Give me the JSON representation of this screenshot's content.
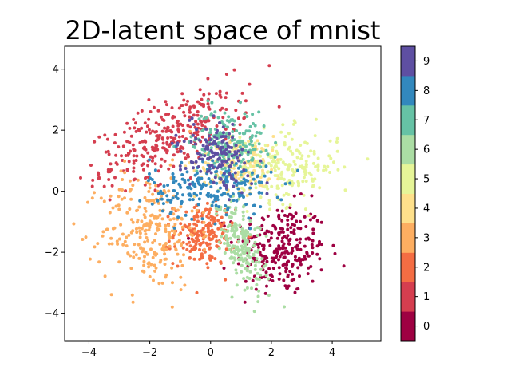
{
  "chart_data": {
    "type": "scatter",
    "title": "2D-latent space of mnist",
    "xlabel": "",
    "ylabel": "",
    "xlim": [
      -4.8,
      5.6
    ],
    "ylim": [
      -4.9,
      4.75
    ],
    "x_ticks": [
      -4,
      -2,
      0,
      2,
      4
    ],
    "y_ticks": [
      -4,
      -2,
      0,
      2,
      4
    ],
    "grid": false,
    "colorbar": {
      "ticks": [
        0,
        1,
        2,
        3,
        4,
        5,
        6,
        7,
        8,
        9
      ],
      "range": [
        -0.5,
        9.5
      ],
      "colors": [
        "#9e0142",
        "#d53e4f",
        "#f46d43",
        "#fdae61",
        "#fee08b",
        "#e6f598",
        "#abdda4",
        "#66c2a5",
        "#3288bd",
        "#5e4fa2"
      ]
    },
    "series": [
      {
        "digit": 0,
        "color": "#9e0142",
        "center": [
          2.3,
          -1.9
        ],
        "spread": [
          0.75,
          0.75
        ],
        "angle": 0,
        "count": 260
      },
      {
        "digit": 1,
        "color": "#d53e4f",
        "center": [
          -1.3,
          1.8
        ],
        "spread": [
          1.3,
          0.55
        ],
        "angle": 25,
        "count": 320
      },
      {
        "digit": 2,
        "color": "#f46d43",
        "center": [
          -0.2,
          -1.4
        ],
        "spread": [
          0.5,
          0.5
        ],
        "angle": 0,
        "count": 190
      },
      {
        "digit": 3,
        "color": "#fdae61",
        "center": [
          -2.0,
          -1.3
        ],
        "spread": [
          0.8,
          0.95
        ],
        "angle": 0,
        "count": 260
      },
      {
        "digit": 4,
        "color": "#fee08b",
        "center": [
          1.0,
          0.9
        ],
        "spread": [
          0.75,
          0.45
        ],
        "angle": 0,
        "count": 170
      },
      {
        "digit": 5,
        "color": "#e6f598",
        "center": [
          2.6,
          0.8
        ],
        "spread": [
          0.8,
          0.6
        ],
        "angle": 0,
        "count": 190
      },
      {
        "digit": 6,
        "color": "#abdda4",
        "center": [
          1.0,
          -1.7
        ],
        "spread": [
          0.3,
          0.85
        ],
        "angle": 20,
        "count": 210
      },
      {
        "digit": 7,
        "color": "#66c2a5",
        "center": [
          0.6,
          1.6
        ],
        "spread": [
          0.6,
          0.55
        ],
        "angle": 0,
        "count": 180
      },
      {
        "digit": 8,
        "color": "#3288bd",
        "center": [
          0.0,
          0.1
        ],
        "spread": [
          1.0,
          0.5
        ],
        "angle": 0,
        "count": 200
      },
      {
        "digit": 9,
        "color": "#5e4fa2",
        "center": [
          0.2,
          1.2
        ],
        "spread": [
          0.75,
          0.45
        ],
        "angle": -45,
        "count": 150
      }
    ]
  }
}
